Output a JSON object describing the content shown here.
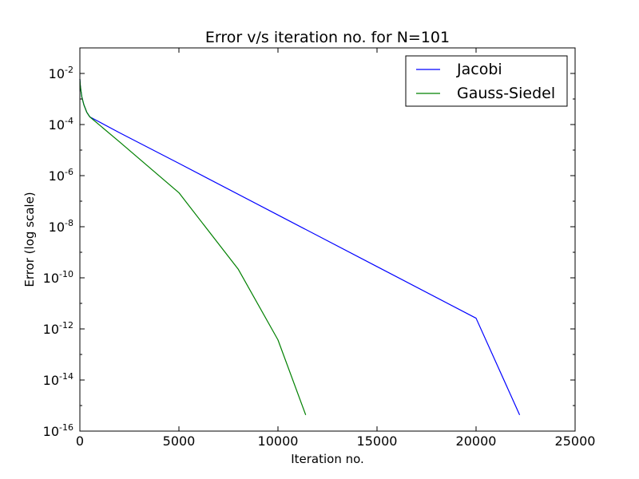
{
  "chart_data": {
    "type": "line",
    "title": "Error v/s iteration no. for N=101",
    "xlabel": "Iteration no.",
    "ylabel": "Error (log scale)",
    "xlim": [
      0,
      25000
    ],
    "ylim": [
      1e-16,
      0.1
    ],
    "yscale": "log",
    "xticks": [
      "0",
      "5000",
      "10000",
      "15000",
      "20000",
      "25000"
    ],
    "yticks_exponent": [
      "-2",
      "-4",
      "-6",
      "-8",
      "-10",
      "-12",
      "-14",
      "-16"
    ],
    "ytick_base": "10",
    "grid": false,
    "legend_position": "top-right",
    "series": [
      {
        "name": "Jacobi",
        "color": "#0000ff",
        "points": [
          [
            0,
            0.006
          ],
          [
            20,
            0.0035
          ],
          [
            50,
            0.0022
          ],
          [
            100,
            0.0012
          ],
          [
            200,
            0.0006
          ],
          [
            350,
            0.0003
          ],
          [
            500,
            0.0002
          ],
          [
            2000,
            4.79e-05
          ],
          [
            5000,
            3.02e-06
          ],
          [
            10000,
            2.88e-08
          ],
          [
            15000,
            2.75e-10
          ],
          [
            20000,
            2.63e-12
          ],
          [
            22200,
            4.3e-16
          ]
        ]
      },
      {
        "name": "Gauss-Siedel",
        "color": "#008000",
        "points": [
          [
            0,
            0.006
          ],
          [
            20,
            0.0035
          ],
          [
            50,
            0.0022
          ],
          [
            100,
            0.0012
          ],
          [
            200,
            0.0006
          ],
          [
            350,
            0.0003
          ],
          [
            500,
            0.0002
          ],
          [
            2000,
            2.1e-05
          ],
          [
            5000,
            2.14e-07
          ],
          [
            8000,
            2.14e-10
          ],
          [
            10000,
            3.72e-13
          ],
          [
            11400,
            4.3e-16
          ]
        ]
      }
    ]
  }
}
